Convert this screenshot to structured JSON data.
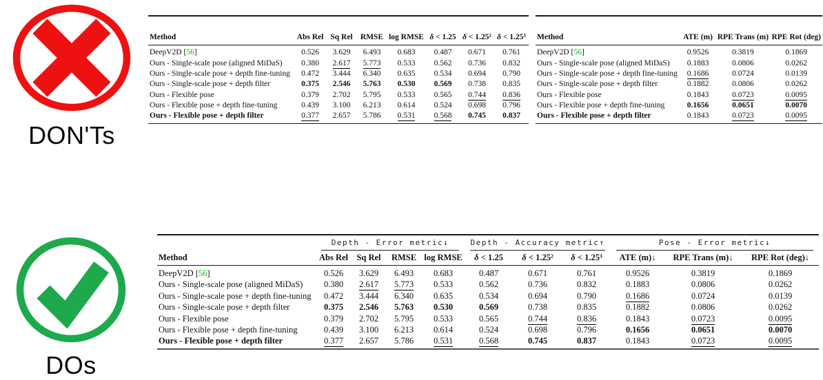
{
  "badges": {
    "dont_label": "DON'Ts",
    "do_label": "DOs"
  },
  "colors": {
    "dont_red": "#EE1111",
    "do_green": "#1EA94C",
    "cite_green": "#00BB00"
  },
  "method_header": "Method",
  "methods": [
    {
      "name": "DeepV2D",
      "cite": "56"
    },
    {
      "name": "Ours - Single-scale pose (aligned MiDaS)"
    },
    {
      "name": "Ours - Single-scale pose + depth fine-tuning"
    },
    {
      "name": "Ours - Single-scale pose + depth filter"
    },
    {
      "name": "Ours - Flexible pose"
    },
    {
      "name": "Ours - Flexible pose + depth fine-tuning"
    },
    {
      "name": "Ours - Flexible pose + depth filter",
      "b": true
    }
  ],
  "dont_depth_table": {
    "columns": [
      "Abs Rel",
      "Sq Rel",
      "RMSE",
      "log RMSE",
      "δ < 1.25",
      "δ < 1.25²",
      "δ < 1.25³"
    ],
    "rows": [
      [
        "0.526",
        "3.629",
        "6.493",
        "0.683",
        "0.487",
        "0.671",
        "0.761"
      ],
      [
        "0.380",
        {
          "v": "2.617",
          "u": true
        },
        {
          "v": "5.773",
          "u": true
        },
        "0.533",
        "0.562",
        "0.736",
        "0.832"
      ],
      [
        "0.472",
        "3.444",
        "6.340",
        "0.635",
        "0.534",
        "0.694",
        "0.790"
      ],
      [
        {
          "v": "0.375",
          "b": true
        },
        {
          "v": "2.546",
          "b": true
        },
        {
          "v": "5.763",
          "b": true
        },
        {
          "v": "0.530",
          "b": true
        },
        {
          "v": "0.569",
          "b": true
        },
        "0.738",
        "0.835"
      ],
      [
        "0.379",
        "2.702",
        "5.795",
        "0.533",
        "0.565",
        {
          "v": "0.744",
          "u": true
        },
        {
          "v": "0.836",
          "u": true
        }
      ],
      [
        "0.439",
        "3.100",
        "6.213",
        "0.614",
        "0.524",
        "0.698",
        "0.796"
      ],
      [
        {
          "v": "0.377",
          "u": true
        },
        "2.657",
        "5.786",
        {
          "v": "0.531",
          "u": true
        },
        {
          "v": "0.568",
          "u": true
        },
        {
          "v": "0.745",
          "b": true
        },
        {
          "v": "0.837",
          "b": true
        }
      ]
    ]
  },
  "dont_pose_table": {
    "columns": [
      "ATE (m)",
      "RPE Trans (m)",
      "RPE Rot (deg)"
    ],
    "rows": [
      [
        "0.9526",
        "0.3819",
        "0.1869"
      ],
      [
        "0.1883",
        "0.0806",
        "0.0262"
      ],
      [
        {
          "v": "0.1686",
          "u": true
        },
        "0.0724",
        "0.0139"
      ],
      [
        "0.1882",
        "0.0806",
        "0.0262"
      ],
      [
        "0.1843",
        {
          "v": "0.0723",
          "u": true
        },
        {
          "v": "0.0095",
          "u": true
        }
      ],
      [
        {
          "v": "0.1656",
          "b": true
        },
        {
          "v": "0.0651",
          "b": true
        },
        {
          "v": "0.0070",
          "b": true
        }
      ],
      [
        "0.1843",
        {
          "v": "0.0723",
          "u": true
        },
        {
          "v": "0.0095",
          "u": true
        }
      ]
    ]
  },
  "do_table": {
    "groups": [
      {
        "label": "Depth - Error metric↓",
        "span": 4
      },
      {
        "label": "Depth - Accuracy metric↑",
        "span": 3
      },
      {
        "label": "Pose - Error metric↓",
        "span": 3
      }
    ],
    "columns": [
      "Abs Rel",
      "Sq Rel",
      "RMSE",
      "log RMSE",
      "δ < 1.25",
      "δ < 1.25²",
      "δ < 1.25³",
      "ATE (m)↓",
      "RPE Trans (m)↓",
      "RPE Rot (deg)↓"
    ],
    "rows": [
      [
        "0.526",
        "3.629",
        "6.493",
        "0.683",
        "0.487",
        "0.671",
        "0.761",
        "0.9526",
        "0.3819",
        "0.1869"
      ],
      [
        "0.380",
        {
          "v": "2.617",
          "u": true
        },
        {
          "v": "5.773",
          "u": true
        },
        "0.533",
        "0.562",
        "0.736",
        "0.832",
        "0.1883",
        "0.0806",
        "0.0262"
      ],
      [
        "0.472",
        "3.444",
        "6.340",
        "0.635",
        "0.534",
        "0.694",
        "0.790",
        {
          "v": "0.1686",
          "u": true
        },
        "0.0724",
        "0.0139"
      ],
      [
        {
          "v": "0.375",
          "b": true
        },
        {
          "v": "2.546",
          "b": true
        },
        {
          "v": "5.763",
          "b": true
        },
        {
          "v": "0.530",
          "b": true
        },
        {
          "v": "0.569",
          "b": true
        },
        "0.738",
        "0.835",
        "0.1882",
        "0.0806",
        "0.0262"
      ],
      [
        "0.379",
        "2.702",
        "5.795",
        "0.533",
        "0.565",
        {
          "v": "0.744",
          "u": true
        },
        {
          "v": "0.836",
          "u": true
        },
        "0.1843",
        {
          "v": "0.0723",
          "u": true
        },
        {
          "v": "0.0095",
          "u": true
        }
      ],
      [
        "0.439",
        "3.100",
        "6.213",
        "0.614",
        "0.524",
        "0.698",
        "0.796",
        {
          "v": "0.1656",
          "b": true
        },
        {
          "v": "0.0651",
          "b": true
        },
        {
          "v": "0.0070",
          "b": true
        }
      ],
      [
        {
          "v": "0.377",
          "u": true
        },
        "2.657",
        "5.786",
        {
          "v": "0.531",
          "u": true
        },
        {
          "v": "0.568",
          "u": true
        },
        {
          "v": "0.745",
          "b": true
        },
        {
          "v": "0.837",
          "b": true
        },
        "0.1843",
        {
          "v": "0.0723",
          "u": true
        },
        {
          "v": "0.0095",
          "u": true
        }
      ]
    ]
  }
}
